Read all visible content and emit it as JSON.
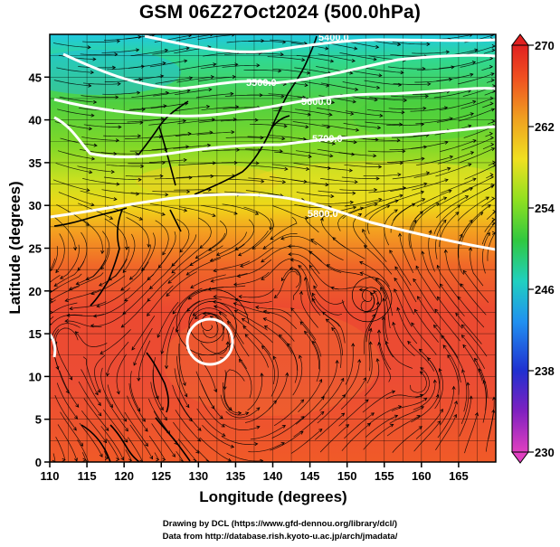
{
  "title": "GSM 06Z27Oct2024 (500.0hPa)",
  "xaxis": {
    "label": "Longitude (degrees)",
    "ticks": [
      "110",
      "115",
      "120",
      "125",
      "130",
      "135",
      "140",
      "145",
      "150",
      "155",
      "160",
      "165"
    ],
    "range": [
      110,
      170
    ]
  },
  "yaxis": {
    "label": "Latitude (degrees)",
    "ticks": [
      "0",
      "5",
      "10",
      "15",
      "20",
      "25",
      "30",
      "35",
      "40",
      "45"
    ],
    "range": [
      0,
      50
    ]
  },
  "colorbar": {
    "ticks": [
      "230",
      "238",
      "246",
      "254",
      "262",
      "270"
    ],
    "range": [
      230,
      270
    ],
    "colors": [
      "#e040c0",
      "#6020c0",
      "#2040e0",
      "#20b0f0",
      "#20d0a0",
      "#40d040",
      "#a0e020",
      "#f0e020",
      "#f0a020",
      "#f06020",
      "#e02020"
    ]
  },
  "contours": {
    "labels": [
      "5400.0",
      "5500.0",
      "5600.0",
      "5700.0",
      "5800.0"
    ],
    "line_color": "#ffffff"
  },
  "credits": {
    "line1": "Drawing by DCL (https://www.gfd-dennou.org/library/dcl/)",
    "line2": "Data from http://database.rish.kyoto-u.ac.jp/arch/jmadata/"
  }
}
